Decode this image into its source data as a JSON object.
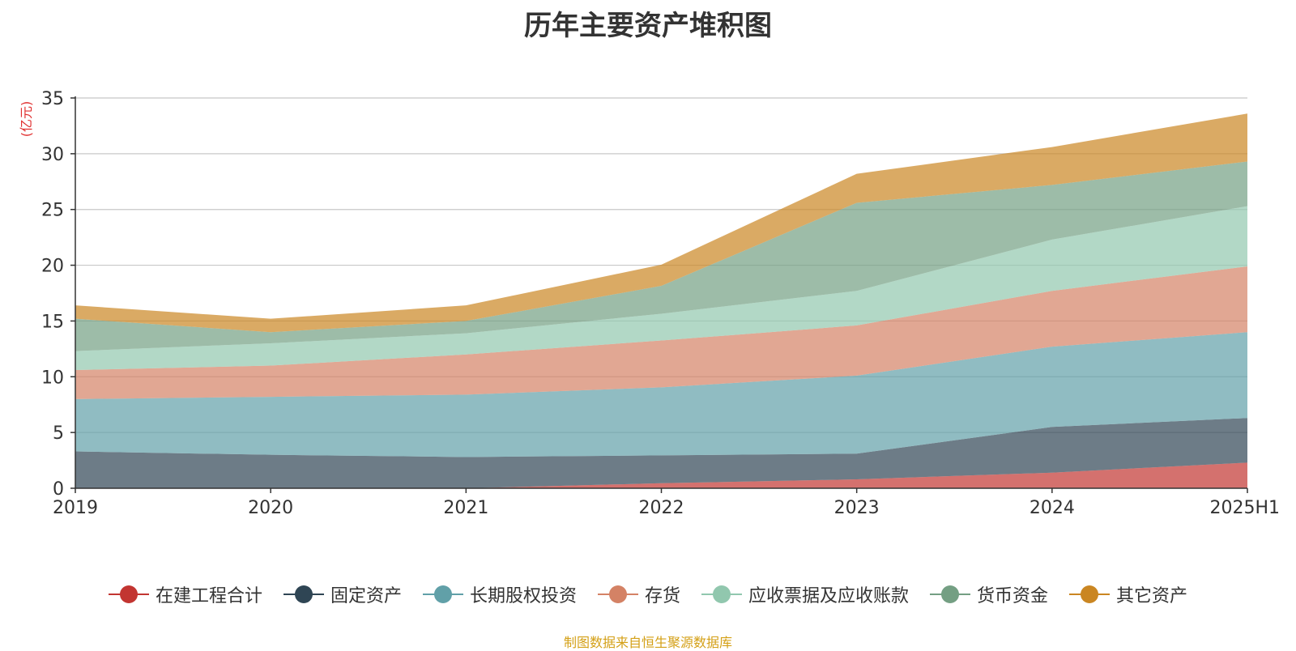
{
  "chart_data": {
    "type": "area",
    "stacked": true,
    "title": "历年主要资产堆积图",
    "ylabel": "(亿元)",
    "xlabel": "",
    "categories": [
      "2019",
      "2020",
      "2021",
      "2022",
      "2023",
      "2024",
      "2025H1"
    ],
    "ylim": [
      0,
      35
    ],
    "yticks": [
      0,
      5,
      10,
      15,
      20,
      25,
      30,
      35
    ],
    "grid": true,
    "legend_position": "bottom",
    "series": [
      {
        "name": "在建工程合计",
        "color": "#c23531",
        "values": [
          0,
          0,
          0,
          0.45,
          0.8,
          1.4,
          2.3
        ]
      },
      {
        "name": "固定资产",
        "color": "#2f4554",
        "values": [
          3.3,
          3.0,
          2.8,
          2.5,
          2.3,
          4.1,
          4.0
        ]
      },
      {
        "name": "长期股权投资",
        "color": "#61a0a8",
        "values": [
          4.7,
          5.2,
          5.6,
          6.1,
          7.0,
          7.2,
          7.7
        ]
      },
      {
        "name": "存货",
        "color": "#d48265",
        "values": [
          2.6,
          2.8,
          3.6,
          4.2,
          4.5,
          5.0,
          5.9
        ]
      },
      {
        "name": "应收票据及应收账款",
        "color": "#91c7ae",
        "values": [
          1.7,
          2.0,
          1.9,
          2.4,
          3.1,
          4.6,
          5.4
        ]
      },
      {
        "name": "货币资金",
        "color": "#749f83",
        "values": [
          2.9,
          1.0,
          1.1,
          2.5,
          7.9,
          4.9,
          4.0
        ]
      },
      {
        "name": "其它资产",
        "color": "#ca8622",
        "values": [
          1.2,
          1.2,
          1.4,
          1.9,
          2.6,
          3.4,
          4.3
        ]
      }
    ]
  },
  "source_note": "制图数据来自恒生聚源数据库"
}
